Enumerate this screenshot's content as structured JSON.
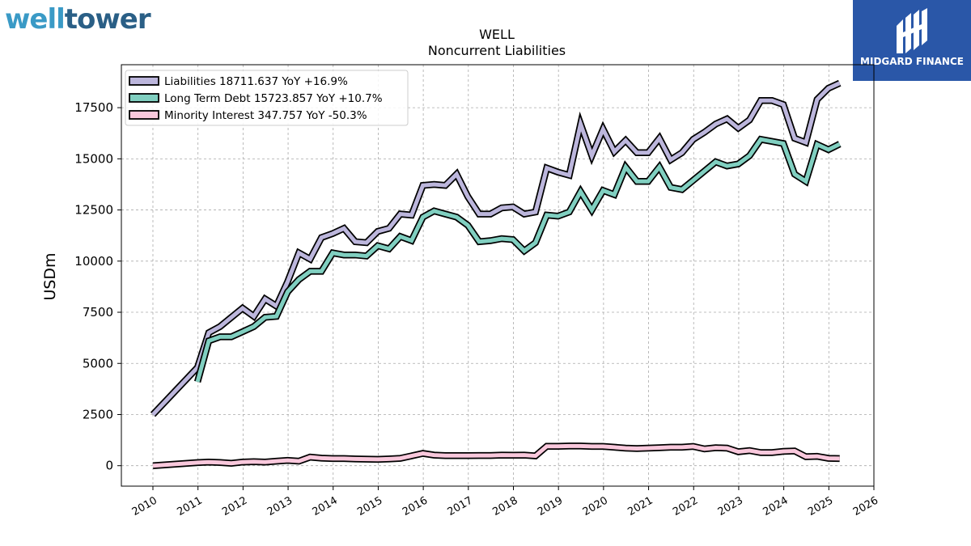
{
  "logos": {
    "left": {
      "part1": "well",
      "part2": "tower"
    },
    "right": {
      "brand": "MIDGARD FINANCE"
    }
  },
  "colors": {
    "liabilities": "#bcb6dc",
    "long_term_debt": "#80cfc0",
    "minority_interest": "#f9c8dc",
    "outline": "#000000",
    "grid": "#aaaaaa"
  },
  "chart_data": {
    "type": "line",
    "title": "WELL",
    "subtitle": "Noncurrent  Liabilities",
    "xlabel": "",
    "ylabel": "USDm",
    "xlim": [
      2009.3,
      2026
    ],
    "ylim": [
      -1000,
      19600
    ],
    "x_ticks": [
      2010,
      2011,
      2012,
      2013,
      2014,
      2015,
      2016,
      2017,
      2018,
      2019,
      2020,
      2021,
      2022,
      2023,
      2024,
      2025,
      2026
    ],
    "y_ticks": [
      0,
      2500,
      5000,
      7500,
      10000,
      12500,
      15000,
      17500
    ],
    "grid": true,
    "legend_position": "top-left",
    "series": [
      {
        "name": "Liabilities",
        "legend": "Liabilities  18711.637 YoY +16.9%",
        "color_key": "liabilities",
        "points": [
          [
            2010.0,
            2500
          ],
          [
            2010.99,
            4800
          ],
          [
            2011.24,
            6500
          ],
          [
            2011.49,
            6800
          ],
          [
            2011.74,
            7250
          ],
          [
            2011.99,
            7700
          ],
          [
            2012.24,
            7300
          ],
          [
            2012.49,
            8150
          ],
          [
            2012.74,
            7800
          ],
          [
            2012.99,
            9000
          ],
          [
            2013.24,
            10400
          ],
          [
            2013.49,
            10100
          ],
          [
            2013.74,
            11150
          ],
          [
            2013.99,
            11350
          ],
          [
            2014.24,
            11600
          ],
          [
            2014.49,
            10950
          ],
          [
            2014.74,
            10900
          ],
          [
            2014.99,
            11450
          ],
          [
            2015.24,
            11600
          ],
          [
            2015.49,
            12300
          ],
          [
            2015.74,
            12250
          ],
          [
            2015.99,
            13700
          ],
          [
            2016.24,
            13750
          ],
          [
            2016.49,
            13700
          ],
          [
            2016.74,
            14250
          ],
          [
            2016.99,
            13150
          ],
          [
            2017.24,
            12300
          ],
          [
            2017.49,
            12300
          ],
          [
            2017.74,
            12600
          ],
          [
            2017.99,
            12650
          ],
          [
            2018.24,
            12300
          ],
          [
            2018.49,
            12400
          ],
          [
            2018.74,
            14550
          ],
          [
            2018.99,
            14350
          ],
          [
            2019.24,
            14200
          ],
          [
            2019.49,
            16700
          ],
          [
            2019.74,
            15150
          ],
          [
            2019.99,
            16450
          ],
          [
            2020.24,
            15350
          ],
          [
            2020.49,
            15900
          ],
          [
            2020.74,
            15300
          ],
          [
            2020.99,
            15300
          ],
          [
            2021.24,
            16000
          ],
          [
            2021.49,
            14950
          ],
          [
            2021.74,
            15300
          ],
          [
            2021.99,
            15950
          ],
          [
            2022.24,
            16300
          ],
          [
            2022.49,
            16700
          ],
          [
            2022.74,
            16950
          ],
          [
            2022.99,
            16500
          ],
          [
            2023.24,
            16900
          ],
          [
            2023.49,
            17850
          ],
          [
            2023.74,
            17850
          ],
          [
            2023.99,
            17650
          ],
          [
            2024.24,
            16000
          ],
          [
            2024.49,
            15800
          ],
          [
            2024.74,
            17900
          ],
          [
            2024.99,
            18450
          ],
          [
            2025.24,
            18700
          ]
        ]
      },
      {
        "name": "Long Term Debt",
        "legend": "Long Term Debt  15723.857 YoY +10.7%",
        "color_key": "long_term_debt",
        "points": [
          [
            2010.99,
            4100
          ],
          [
            2011.24,
            6100
          ],
          [
            2011.49,
            6300
          ],
          [
            2011.74,
            6300
          ],
          [
            2011.99,
            6550
          ],
          [
            2012.24,
            6800
          ],
          [
            2012.49,
            7250
          ],
          [
            2012.74,
            7300
          ],
          [
            2012.99,
            8500
          ],
          [
            2013.24,
            9100
          ],
          [
            2013.49,
            9500
          ],
          [
            2013.74,
            9500
          ],
          [
            2013.99,
            10400
          ],
          [
            2014.24,
            10300
          ],
          [
            2014.49,
            10300
          ],
          [
            2014.74,
            10250
          ],
          [
            2014.99,
            10750
          ],
          [
            2015.24,
            10600
          ],
          [
            2015.49,
            11200
          ],
          [
            2015.74,
            11000
          ],
          [
            2015.99,
            12150
          ],
          [
            2016.24,
            12450
          ],
          [
            2016.49,
            12300
          ],
          [
            2016.74,
            12150
          ],
          [
            2016.99,
            11750
          ],
          [
            2017.24,
            10950
          ],
          [
            2017.49,
            11000
          ],
          [
            2017.74,
            11100
          ],
          [
            2017.99,
            11050
          ],
          [
            2018.24,
            10500
          ],
          [
            2018.49,
            10900
          ],
          [
            2018.74,
            12250
          ],
          [
            2018.99,
            12200
          ],
          [
            2019.24,
            12400
          ],
          [
            2019.49,
            13400
          ],
          [
            2019.74,
            12500
          ],
          [
            2019.99,
            13450
          ],
          [
            2020.24,
            13250
          ],
          [
            2020.49,
            14600
          ],
          [
            2020.74,
            13900
          ],
          [
            2020.99,
            13900
          ],
          [
            2021.24,
            14600
          ],
          [
            2021.49,
            13600
          ],
          [
            2021.74,
            13500
          ],
          [
            2021.99,
            13950
          ],
          [
            2022.24,
            14400
          ],
          [
            2022.49,
            14850
          ],
          [
            2022.74,
            14650
          ],
          [
            2022.99,
            14750
          ],
          [
            2023.24,
            15150
          ],
          [
            2023.49,
            15950
          ],
          [
            2023.74,
            15850
          ],
          [
            2023.99,
            15750
          ],
          [
            2024.24,
            14250
          ],
          [
            2024.49,
            13900
          ],
          [
            2024.74,
            15700
          ],
          [
            2024.99,
            15450
          ],
          [
            2025.24,
            15723
          ]
        ]
      },
      {
        "name": "Minority Interest",
        "legend": "Minority Interest  347.757 YoY -50.3%",
        "color_key": "minority_interest",
        "points": [
          [
            2010.0,
            0
          ],
          [
            2010.99,
            150
          ],
          [
            2011.24,
            180
          ],
          [
            2011.49,
            160
          ],
          [
            2011.74,
            120
          ],
          [
            2011.99,
            180
          ],
          [
            2012.24,
            200
          ],
          [
            2012.49,
            180
          ],
          [
            2012.74,
            220
          ],
          [
            2012.99,
            260
          ],
          [
            2013.24,
            220
          ],
          [
            2013.49,
            420
          ],
          [
            2013.74,
            370
          ],
          [
            2013.99,
            350
          ],
          [
            2014.24,
            350
          ],
          [
            2014.49,
            330
          ],
          [
            2014.74,
            320
          ],
          [
            2014.99,
            310
          ],
          [
            2015.24,
            330
          ],
          [
            2015.49,
            360
          ],
          [
            2015.74,
            480
          ],
          [
            2015.99,
            600
          ],
          [
            2016.24,
            520
          ],
          [
            2016.49,
            490
          ],
          [
            2016.74,
            490
          ],
          [
            2016.99,
            490
          ],
          [
            2017.24,
            500
          ],
          [
            2017.49,
            500
          ],
          [
            2017.74,
            520
          ],
          [
            2017.99,
            510
          ],
          [
            2018.24,
            520
          ],
          [
            2018.49,
            480
          ],
          [
            2018.74,
            950
          ],
          [
            2018.99,
            950
          ],
          [
            2019.24,
            960
          ],
          [
            2019.49,
            960
          ],
          [
            2019.74,
            940
          ],
          [
            2019.99,
            940
          ],
          [
            2020.24,
            900
          ],
          [
            2020.49,
            860
          ],
          [
            2020.74,
            840
          ],
          [
            2020.99,
            860
          ],
          [
            2021.24,
            880
          ],
          [
            2021.49,
            900
          ],
          [
            2021.74,
            900
          ],
          [
            2021.99,
            940
          ],
          [
            2022.24,
            820
          ],
          [
            2022.49,
            880
          ],
          [
            2022.74,
            860
          ],
          [
            2022.99,
            680
          ],
          [
            2023.24,
            740
          ],
          [
            2023.49,
            640
          ],
          [
            2023.74,
            640
          ],
          [
            2023.99,
            700
          ],
          [
            2024.24,
            720
          ],
          [
            2024.49,
            440
          ],
          [
            2024.74,
            460
          ],
          [
            2024.99,
            360
          ],
          [
            2025.24,
            348
          ]
        ]
      }
    ]
  }
}
